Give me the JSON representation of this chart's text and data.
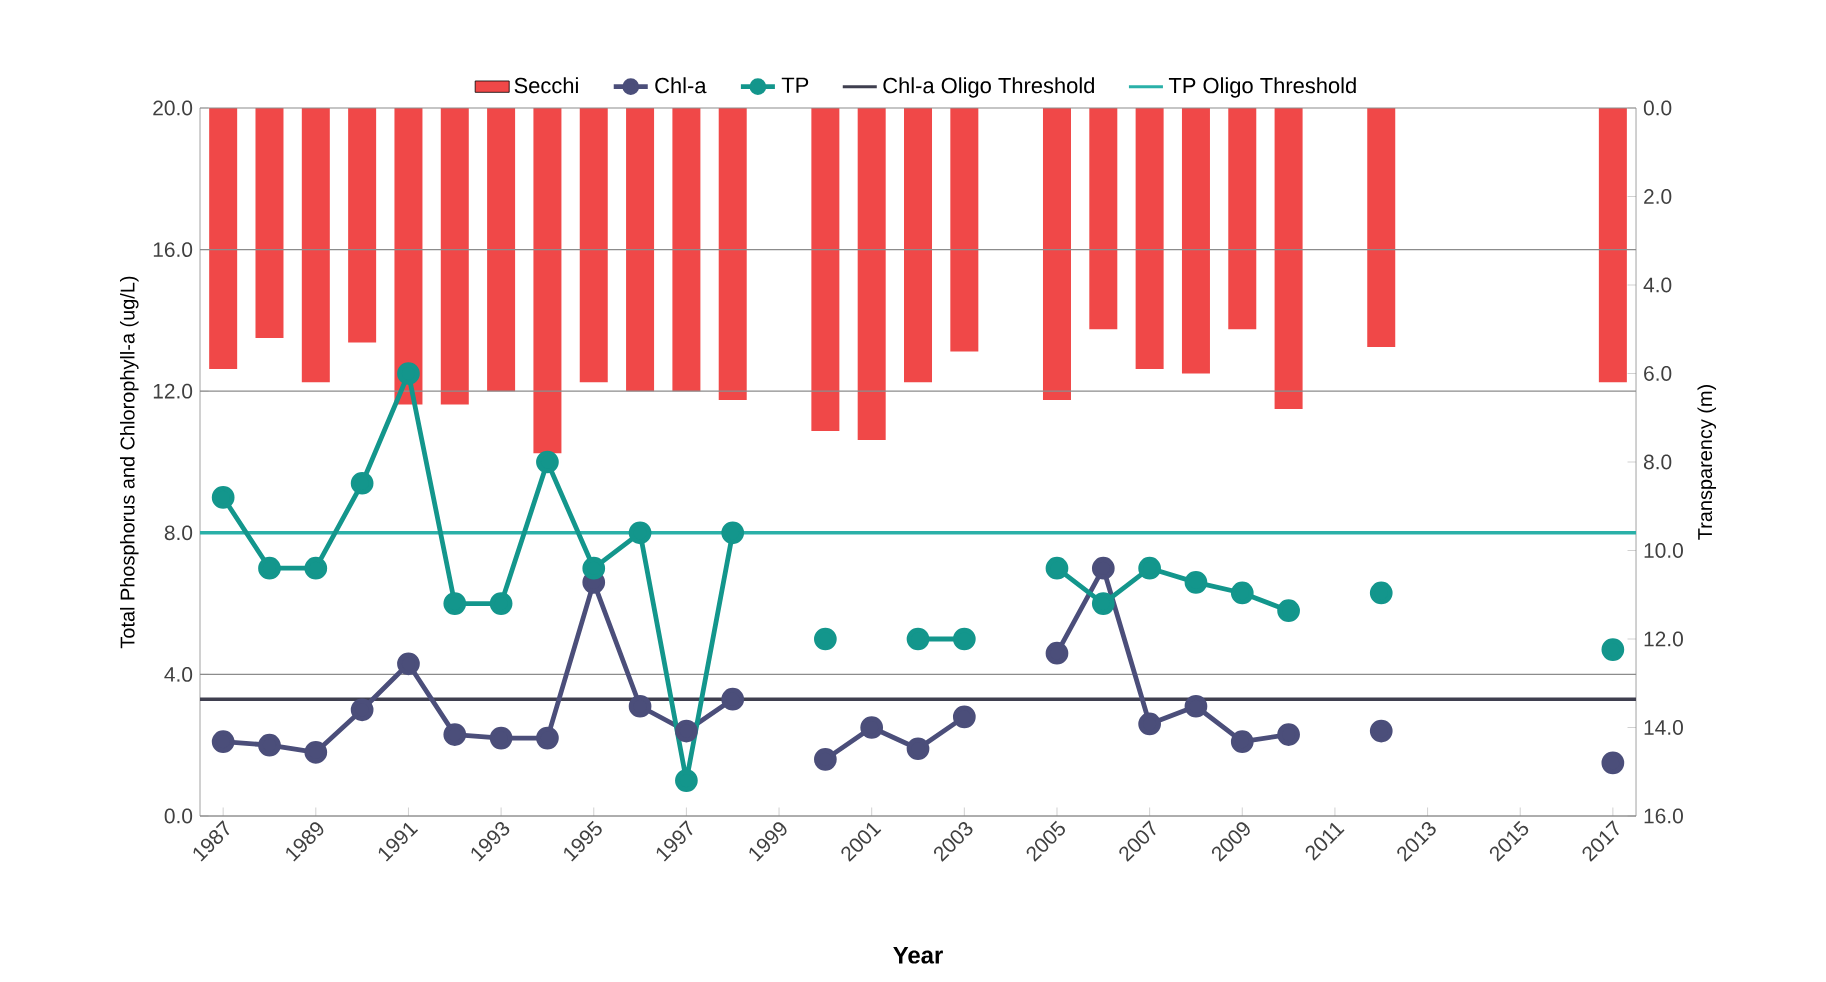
{
  "chart_data": {
    "type": "line",
    "xlabel": "Year",
    "ylabel": "Total Phosphorus and Chlorophyll-a (ug/L)",
    "y2label": "Transparency (m)",
    "categories": [
      "1987",
      null,
      "1989",
      null,
      "1991",
      null,
      "1993",
      null,
      "1995",
      null,
      "1997",
      null,
      "1999",
      null,
      "2001",
      null,
      "2003",
      null,
      "2005",
      null,
      "2007",
      null,
      "2009",
      null,
      "2011",
      null,
      "2013",
      null,
      "2015",
      null,
      "2017"
    ],
    "series": [
      {
        "name": "Secchi",
        "type": "bar",
        "axis": "y2",
        "color": "#f04848",
        "values": [
          5.9,
          5.2,
          6.2,
          5.3,
          6.7,
          6.7,
          6.4,
          7.8,
          6.2,
          6.4,
          6.4,
          6.6,
          null,
          7.3,
          7.5,
          6.2,
          5.5,
          null,
          6.6,
          5.0,
          5.9,
          6.0,
          5.0,
          6.8,
          null,
          5.4,
          null,
          null,
          null,
          null,
          6.2
        ]
      },
      {
        "name": "Chl-a",
        "color": "#4b4e7a",
        "values": [
          2.1,
          2.0,
          1.8,
          3.0,
          4.3,
          2.3,
          2.2,
          2.2,
          6.6,
          3.1,
          2.4,
          3.3,
          null,
          1.6,
          2.5,
          1.9,
          2.8,
          null,
          4.6,
          7.0,
          2.6,
          3.1,
          2.1,
          2.3,
          null,
          2.4,
          null,
          null,
          null,
          null,
          1.5
        ]
      },
      {
        "name": "TP",
        "color": "#13968c",
        "values": [
          9.0,
          7.0,
          7.0,
          9.4,
          12.5,
          6.0,
          6.0,
          10.0,
          7.0,
          8.0,
          1.0,
          8.0,
          null,
          5.0,
          null,
          5.0,
          5.0,
          null,
          7.0,
          6.0,
          7.0,
          6.6,
          6.3,
          5.8,
          null,
          6.3,
          null,
          null,
          null,
          null,
          4.7
        ]
      }
    ],
    "ref_lines": [
      {
        "axis": "y",
        "value": 3.3,
        "label": "Chl-a Oligo Threshold",
        "color": "#3f3f4f"
      },
      {
        "axis": "y",
        "value": 8.0,
        "label": "TP Oligo Threshold",
        "color": "#2ab0a8"
      }
    ],
    "ylim": [
      0,
      20
    ],
    "yticks": [
      {
        "value": 0,
        "label": "0.0"
      },
      {
        "value": 4,
        "label": "4.0"
      },
      {
        "value": 8,
        "label": "8.0"
      },
      {
        "value": 12,
        "label": "12.0"
      },
      {
        "value": 16,
        "label": "16.0"
      },
      {
        "value": 20,
        "label": "20.0"
      }
    ],
    "y2lim": [
      16,
      0
    ],
    "y2ticks": [
      {
        "value": 0,
        "label": "0.0"
      },
      {
        "value": 2,
        "label": "2.0"
      },
      {
        "value": 4,
        "label": "4.0"
      },
      {
        "value": 6,
        "label": "6.0"
      },
      {
        "value": 8,
        "label": "8.0"
      },
      {
        "value": 10,
        "label": "10.0"
      },
      {
        "value": 12,
        "label": "12.0"
      },
      {
        "value": 14,
        "label": "14.0"
      },
      {
        "value": 16,
        "label": "16.0"
      }
    ],
    "grid": "y",
    "legend": "top",
    "marker": "circle",
    "line_style": "solid"
  }
}
